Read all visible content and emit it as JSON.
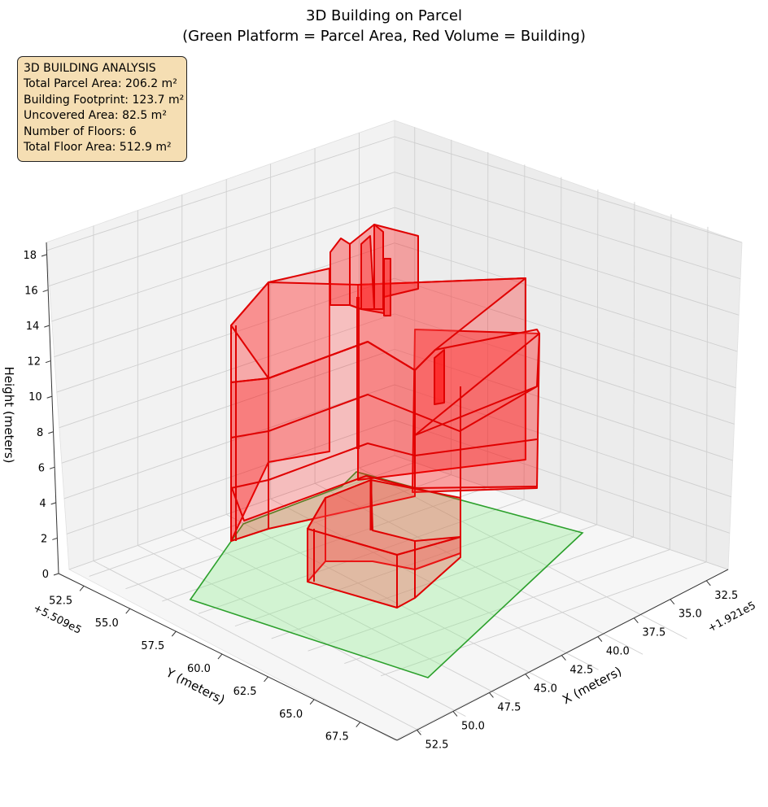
{
  "chart_data": {
    "type": "3d-polygons",
    "title": "3D Building on Parcel",
    "subtitle": "(Green Platform = Parcel Area, Red Volume = Building)",
    "xlabel": "X (meters)",
    "ylabel": "Y (meters)",
    "zlabel": "Height (meters)",
    "x_offset_label": "+1.921e5",
    "y_offset_label": "+5.509e5",
    "x_ticks": [
      "32.5",
      "35.0",
      "37.5",
      "40.0",
      "42.5",
      "45.0",
      "47.5",
      "50.0",
      "52.5"
    ],
    "y_ticks": [
      "52.5",
      "55.0",
      "57.5",
      "60.0",
      "62.5",
      "65.0",
      "67.5"
    ],
    "z_ticks": [
      "0",
      "2",
      "4",
      "6",
      "8",
      "10",
      "12",
      "14",
      "16",
      "18"
    ],
    "grid": true,
    "parcel_color": "#2ca02c",
    "building_color": "#ff0000",
    "legend_location": "upper-left"
  },
  "info": {
    "heading": "3D BUILDING ANALYSIS",
    "parcel_area": "Total Parcel Area: 206.2 m²",
    "footprint": "Building Footprint: 123.7 m²",
    "uncovered": "Uncovered Area: 82.5 m²",
    "floors": "Number of Floors: 6",
    "floor_area": "Total Floor Area: 512.9 m²"
  }
}
